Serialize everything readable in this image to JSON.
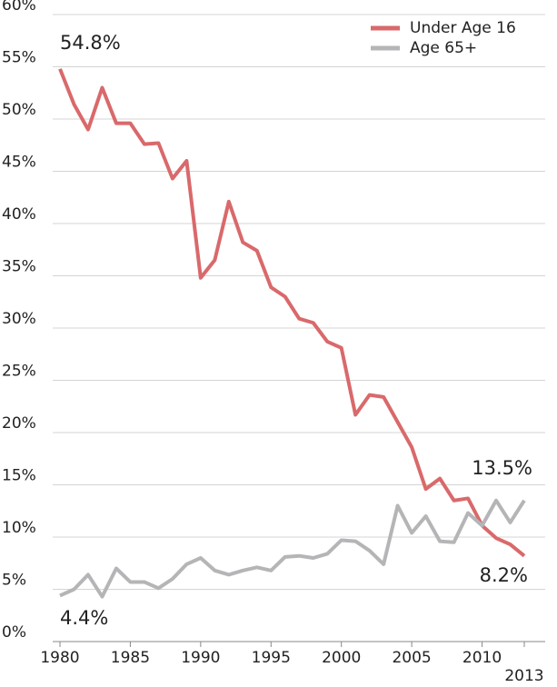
{
  "chart_data": {
    "type": "line",
    "x": [
      1980,
      1981,
      1982,
      1983,
      1984,
      1985,
      1986,
      1987,
      1988,
      1989,
      1990,
      1991,
      1992,
      1993,
      1994,
      1995,
      1996,
      1997,
      1998,
      1999,
      2000,
      2001,
      2002,
      2003,
      2004,
      2005,
      2006,
      2007,
      2008,
      2009,
      2010,
      2011,
      2012,
      2013
    ],
    "series": [
      {
        "name": "Under Age 16",
        "color": "#d9696b",
        "values": [
          54.8,
          51.4,
          49.0,
          53.0,
          49.6,
          49.6,
          47.6,
          47.7,
          44.3,
          46.0,
          34.8,
          36.5,
          42.1,
          38.2,
          37.4,
          33.9,
          33.0,
          30.9,
          30.5,
          28.7,
          28.1,
          21.7,
          23.6,
          23.4,
          21.0,
          18.6,
          14.6,
          15.6,
          13.5,
          13.7,
          11.1,
          9.9,
          9.3,
          8.2
        ]
      },
      {
        "name": "Age 65+",
        "color": "#b5b5b8",
        "values": [
          4.4,
          5.0,
          6.4,
          4.3,
          7.0,
          5.7,
          5.7,
          5.1,
          6.0,
          7.4,
          8.0,
          6.8,
          6.4,
          6.8,
          7.1,
          6.8,
          8.1,
          8.2,
          8.0,
          8.4,
          9.7,
          9.6,
          8.7,
          7.4,
          13.0,
          10.4,
          12.0,
          9.6,
          9.5,
          12.3,
          11.1,
          13.5,
          11.4,
          13.5
        ]
      }
    ],
    "xlim": [
      1980,
      2013
    ],
    "xticks": [
      1980,
      1985,
      1990,
      1995,
      2000,
      2005,
      2010,
      2013
    ],
    "ylim": [
      0,
      60
    ],
    "yticks": [
      {
        "value": 0,
        "label": "0%"
      },
      {
        "value": 5,
        "label": "5%"
      },
      {
        "value": 10,
        "label": "10%"
      },
      {
        "value": 15,
        "label": "15%"
      },
      {
        "value": 20,
        "label": "20%"
      },
      {
        "value": 25,
        "label": "25%"
      },
      {
        "value": 30,
        "label": "30%"
      },
      {
        "value": 35,
        "label": "35%"
      },
      {
        "value": 40,
        "label": "40%"
      },
      {
        "value": 45,
        "label": "45%"
      },
      {
        "value": 50,
        "label": "50%"
      },
      {
        "value": 55,
        "label": "55%"
      },
      {
        "value": 60,
        "label": "60%"
      }
    ],
    "grid": true,
    "legend": "top-right",
    "annotations": [
      "54.8%",
      "4.4%",
      "13.5%",
      "8.2%"
    ]
  }
}
